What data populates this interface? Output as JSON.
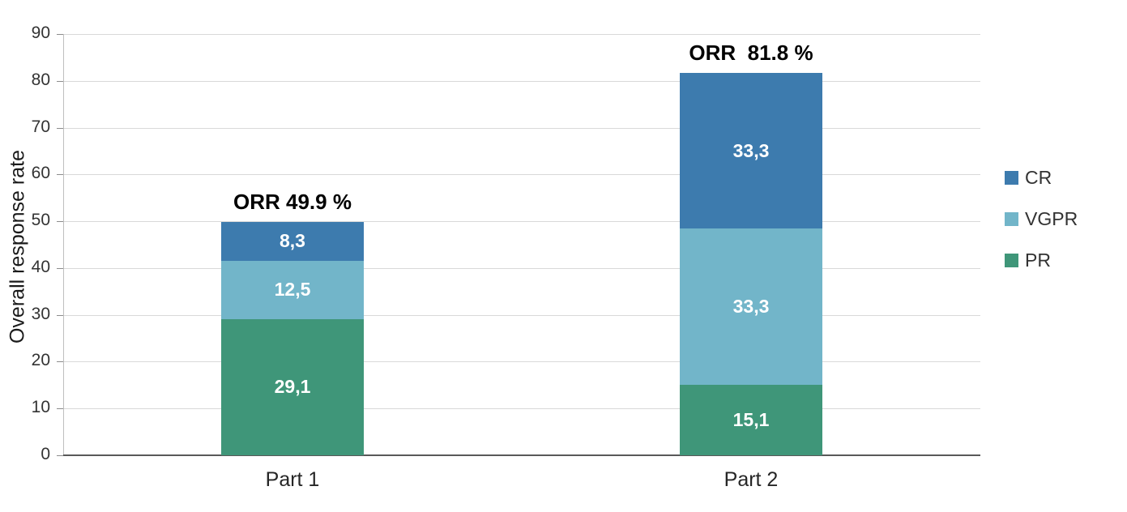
{
  "chart_data": {
    "type": "bar",
    "stacked": true,
    "title": "",
    "ylabel": "Overall response rate",
    "xlabel": "",
    "ylim": [
      0,
      90
    ],
    "yticks": [
      0,
      10,
      20,
      30,
      40,
      50,
      60,
      70,
      80,
      90
    ],
    "grid": true,
    "legend_position": "right",
    "categories": [
      "Part 1",
      "Part 2"
    ],
    "series": [
      {
        "name": "PR",
        "color": "#3f9679",
        "values": [
          29.1,
          15.1
        ],
        "labels": [
          "29,1",
          "15,1"
        ]
      },
      {
        "name": "VGPR",
        "color": "#72b5c9",
        "values": [
          12.5,
          33.3
        ],
        "labels": [
          "12,5",
          "33,3"
        ]
      },
      {
        "name": "CR",
        "color": "#3d7bae",
        "values": [
          8.3,
          33.3
        ],
        "labels": [
          "8,3",
          "33,3"
        ]
      }
    ],
    "bar_annotations": [
      "ORR 49.9 %",
      "ORR  81.8 %"
    ],
    "legend": [
      {
        "label": "CR",
        "color": "#3d7bae"
      },
      {
        "label": "VGPR",
        "color": "#72b5c9"
      },
      {
        "label": "PR",
        "color": "#3f9679"
      }
    ]
  }
}
